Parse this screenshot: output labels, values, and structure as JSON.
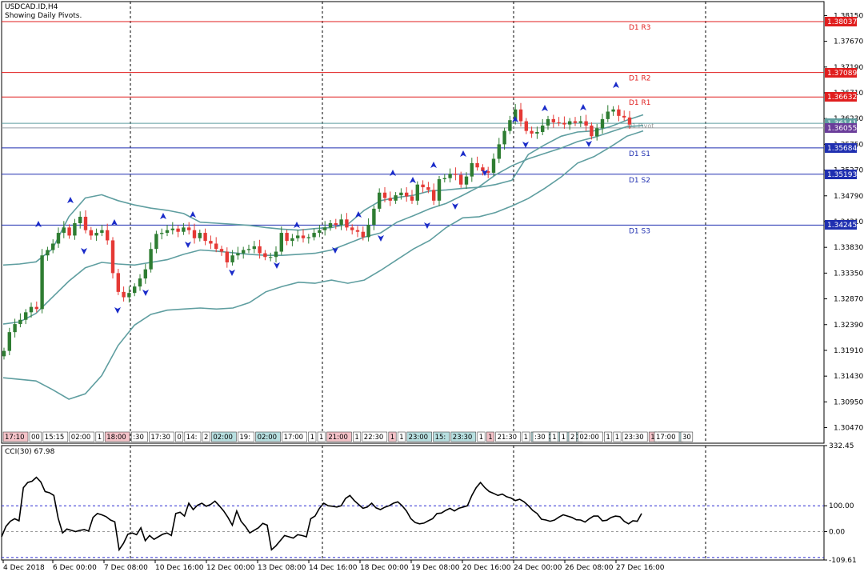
{
  "header": {
    "symbol": "USDCAD.ID,H4",
    "subtitle": "Showing Daily Pivots.",
    "cci_label": "CCI(30) 67.98"
  },
  "colors": {
    "bull": "#2e7d32",
    "bear": "#e53935",
    "band": "#5f9ea0",
    "pivot_resistance": "#e01e1e",
    "pivot_support": "#1f2fb0",
    "arrow": "#1a2bc9"
  },
  "chart_data": [
    {
      "type": "candlestick",
      "name": "price",
      "ylim": [
        1.3018,
        1.3835
      ],
      "y_ticks": [
        "1.38150",
        "1.37670",
        "1.37190",
        "1.36710",
        "1.36230",
        "1.35750",
        "1.35270",
        "1.34790",
        "1.34310",
        "1.33830",
        "1.33350",
        "1.32870",
        "1.32390",
        "1.31910",
        "1.31430",
        "1.30950",
        "1.30470"
      ],
      "price_tags": [
        {
          "text": "1.38037",
          "color": "red"
        },
        {
          "text": "1.37089",
          "color": "red"
        },
        {
          "text": "1.36632",
          "color": "red"
        },
        {
          "text": "1.36141",
          "color": "teal"
        },
        {
          "text": "1.36055",
          "color": "purple"
        },
        {
          "text": "1.35684",
          "color": "blue"
        },
        {
          "text": "1.35193",
          "color": "blue"
        },
        {
          "text": "1.34245",
          "color": "blue"
        }
      ],
      "pivot_levels": [
        {
          "label": "D1  R3",
          "value": 1.38037,
          "kind": "resistance"
        },
        {
          "label": "D1  R2",
          "value": 1.37089,
          "kind": "resistance"
        },
        {
          "label": "D1  R1",
          "value": 1.36632,
          "kind": "resistance"
        },
        {
          "label": "D1  S1",
          "value": 1.35684,
          "kind": "support"
        },
        {
          "label": "D1  S2",
          "value": 1.35193,
          "kind": "support"
        },
        {
          "label": "D1  S3",
          "value": 1.34245,
          "kind": "support"
        },
        {
          "label": "D1  Pivot",
          "value": 1.36055,
          "kind": "pivot"
        }
      ],
      "current_level": 1.36141,
      "closes": [
        1.319,
        1.3225,
        1.324,
        1.3248,
        1.3262,
        1.3272,
        1.3268,
        1.3368,
        1.3378,
        1.339,
        1.341,
        1.342,
        1.3405,
        1.3428,
        1.344,
        1.3415,
        1.3405,
        1.341,
        1.3415,
        1.3396,
        1.3335,
        1.33,
        1.329,
        1.3298,
        1.331,
        1.3325,
        1.3342,
        1.338,
        1.3408,
        1.341,
        1.3415,
        1.3418,
        1.3412,
        1.342,
        1.3415,
        1.34,
        1.341,
        1.3395,
        1.339,
        1.338,
        1.3375,
        1.3355,
        1.3368,
        1.3372,
        1.3378,
        1.338,
        1.3385,
        1.3372,
        1.3365,
        1.3365,
        1.3375,
        1.341,
        1.3395,
        1.34,
        1.3405,
        1.34,
        1.3402,
        1.341,
        1.3415,
        1.342,
        1.3428,
        1.3425,
        1.3435,
        1.342,
        1.3415,
        1.3412,
        1.3402,
        1.3425,
        1.3455,
        1.3485,
        1.3475,
        1.347,
        1.348,
        1.3485,
        1.3478,
        1.347,
        1.35,
        1.3495,
        1.349,
        1.347,
        1.351,
        1.3512,
        1.352,
        1.3518,
        1.35,
        1.3515,
        1.354,
        1.3532,
        1.3525,
        1.3522,
        1.3548,
        1.3575,
        1.36,
        1.362,
        1.364,
        1.3618,
        1.36,
        1.3595,
        1.3598,
        1.361,
        1.3622,
        1.3616,
        1.3615,
        1.3612,
        1.3618,
        1.3615,
        1.3618,
        1.361,
        1.359,
        1.3605,
        1.3622,
        1.3636,
        1.364,
        1.3628,
        1.3625,
        1.3612
      ],
      "upper_band": [
        1.335,
        1.3352,
        1.3356,
        1.338,
        1.344,
        1.3475,
        1.3481,
        1.347,
        1.3462,
        1.3456,
        1.3452,
        1.3446,
        1.343,
        1.3428,
        1.3426,
        1.3424,
        1.342,
        1.3417,
        1.3415,
        1.3418,
        1.342,
        1.3426,
        1.3452,
        1.347,
        1.3476,
        1.348,
        1.3488,
        1.349,
        1.3493,
        1.3495,
        1.35,
        1.3508,
        1.3556,
        1.3574,
        1.359,
        1.3598,
        1.36,
        1.3608,
        1.362,
        1.363
      ],
      "middle_band": [
        1.324,
        1.3244,
        1.326,
        1.329,
        1.332,
        1.3345,
        1.3355,
        1.3352,
        1.335,
        1.3355,
        1.336,
        1.337,
        1.3378,
        1.3376,
        1.3373,
        1.337,
        1.3368,
        1.3368,
        1.337,
        1.3372,
        1.3378,
        1.339,
        1.3402,
        1.341,
        1.343,
        1.3442,
        1.3455,
        1.3465,
        1.348,
        1.3496,
        1.3518,
        1.3535,
        1.3548,
        1.3558,
        1.3568,
        1.358,
        1.3588,
        1.3598,
        1.3608,
        1.361
      ],
      "lower_band": [
        1.314,
        1.3137,
        1.3134,
        1.3118,
        1.31,
        1.311,
        1.3144,
        1.32,
        1.3238,
        1.3258,
        1.3266,
        1.3268,
        1.327,
        1.3268,
        1.327,
        1.328,
        1.33,
        1.331,
        1.3318,
        1.3316,
        1.3322,
        1.3316,
        1.3322,
        1.334,
        1.336,
        1.338,
        1.3396,
        1.342,
        1.3438,
        1.344,
        1.3448,
        1.346,
        1.3474,
        1.3493,
        1.3514,
        1.354,
        1.3552,
        1.357,
        1.359,
        1.36
      ]
    },
    {
      "type": "line",
      "name": "CCI(30)",
      "ylim": [
        -109.61,
        332.45
      ],
      "y_ticks": [
        "332.45",
        "100.00",
        "0.00",
        "-109.61"
      ],
      "reference_lines": [
        100,
        0,
        -100
      ],
      "values": [
        -20,
        20,
        40,
        50,
        42,
        170,
        190,
        195,
        210,
        192,
        155,
        150,
        140,
        52,
        -5,
        10,
        5,
        0,
        5,
        8,
        2,
        55,
        70,
        65,
        58,
        45,
        38,
        -70,
        -45,
        -10,
        -5,
        -12,
        15,
        -35,
        -15,
        -30,
        -20,
        -10,
        -5,
        -15,
        70,
        75,
        60,
        110,
        85,
        102,
        110,
        98,
        105,
        118,
        100,
        80,
        55,
        25,
        80,
        40,
        20,
        -5,
        5,
        15,
        32,
        25,
        -70,
        -55,
        -35,
        -15,
        -20,
        -25,
        -12,
        -15,
        -20,
        50,
        60,
        90,
        110,
        100,
        98,
        95,
        100,
        128,
        140,
        120,
        105,
        90,
        95,
        110,
        92,
        85,
        94,
        100,
        110,
        115,
        100,
        80,
        50,
        35,
        30,
        33,
        42,
        50,
        70,
        72,
        82,
        90,
        80,
        90,
        95,
        100,
        140,
        170,
        190,
        170,
        155,
        148,
        140,
        145,
        135,
        130,
        120,
        125,
        115,
        100,
        82,
        70,
        48,
        45,
        40,
        45,
        56,
        65,
        60,
        55,
        46,
        45,
        37,
        50,
        60,
        60,
        42,
        44,
        55,
        60,
        58,
        40,
        30,
        42,
        40,
        70
      ]
    }
  ],
  "x_axis": {
    "labels": [
      "4 Dec 2018",
      "6 Dec 00:00",
      "7 Dec 08:00",
      "10 Dec 16:00",
      "12 Dec 00:00",
      "13 Dec 08:00",
      "14 Dec 16:00",
      "18 Dec 00:00",
      "19 Dec 08:00",
      "20 Dec 16:00",
      "24 Dec 00:00",
      "26 Dec 08:00",
      "27 Dec 16:00"
    ]
  },
  "session_labels": [
    {
      "text": "17:10",
      "bg": "pink"
    },
    {
      "text": "00",
      "bg": "white"
    },
    {
      "text": "15:15",
      "bg": "white"
    },
    {
      "text": "02:00",
      "bg": "white"
    },
    {
      "text": "1",
      "bg": "white"
    },
    {
      "text": "18:00",
      "bg": "pink"
    },
    {
      "text": ":30",
      "bg": "white"
    },
    {
      "text": "17:30",
      "bg": "white"
    },
    {
      "text": "0",
      "bg": "white"
    },
    {
      "text": "14:",
      "bg": "white"
    },
    {
      "text": "2",
      "bg": "white"
    },
    {
      "text": "02:00",
      "bg": "teal"
    },
    {
      "text": "19:",
      "bg": "white"
    },
    {
      "text": "02:00",
      "bg": "teal"
    },
    {
      "text": "17:00",
      "bg": "white"
    },
    {
      "text": "1",
      "bg": "white"
    },
    {
      "text": "1",
      "bg": "white"
    },
    {
      "text": "21:00",
      "bg": "pink"
    },
    {
      "text": "1",
      "bg": "white"
    },
    {
      "text": "22:30",
      "bg": "white"
    },
    {
      "text": "1",
      "bg": "pink"
    },
    {
      "text": "1",
      "bg": "white"
    },
    {
      "text": "23:00",
      "bg": "teal"
    },
    {
      "text": "15:",
      "bg": "teal"
    },
    {
      "text": "23:30",
      "bg": "teal"
    },
    {
      "text": "1",
      "bg": "white"
    },
    {
      "text": "1",
      "bg": "pink"
    },
    {
      "text": "21:30",
      "bg": "white"
    },
    {
      "text": "1",
      "bg": "white"
    },
    {
      "text": "18:30",
      "bg": "teal"
    },
    {
      "text": "15:30",
      "bg": "teal"
    },
    {
      "text": ":30",
      "bg": "white"
    },
    {
      "text": "1",
      "bg": "white"
    },
    {
      "text": "1",
      "bg": "white"
    },
    {
      "text": "2",
      "bg": "white"
    },
    {
      "text": "02:00",
      "bg": "white"
    },
    {
      "text": "1",
      "bg": "white"
    },
    {
      "text": "1",
      "bg": "white"
    },
    {
      "text": "23:30",
      "bg": "white"
    },
    {
      "text": "1",
      "bg": "pink"
    },
    {
      "text": "16:00",
      "bg": "teal"
    },
    {
      "text": "17:00",
      "bg": "white"
    },
    {
      "text": "30",
      "bg": "white"
    }
  ]
}
